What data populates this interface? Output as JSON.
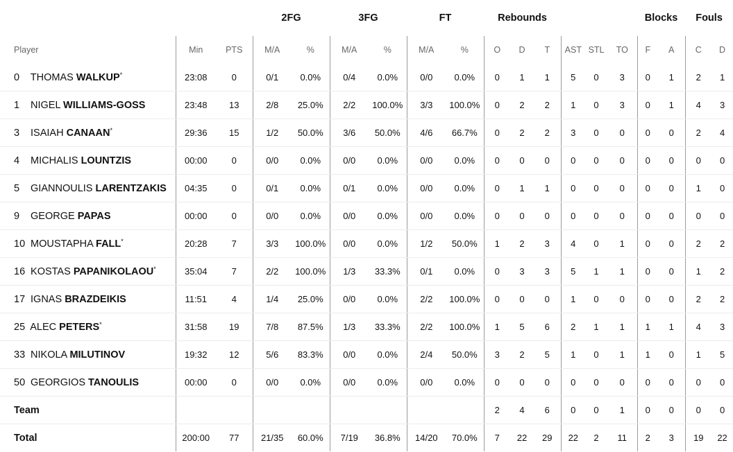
{
  "groups": {
    "fg2": "2FG",
    "fg3": "3FG",
    "ft": "FT",
    "rebounds": "Rebounds",
    "blocks": "Blocks",
    "fouls": "Fouls"
  },
  "columns": [
    "Player",
    "Min",
    "PTS",
    "M/A",
    "%",
    "M/A",
    "%",
    "M/A",
    "%",
    "O",
    "D",
    "T",
    "AST",
    "STL",
    "TO",
    "F",
    "A",
    "C",
    "D"
  ],
  "players": [
    {
      "no": "0",
      "first": "THOMAS",
      "last": "WALKUP",
      "starter": "*",
      "stats": [
        "23:08",
        "0",
        "0/1",
        "0.0%",
        "0/4",
        "0.0%",
        "0/0",
        "0.0%",
        "0",
        "1",
        "1",
        "5",
        "0",
        "3",
        "0",
        "1",
        "2",
        "1"
      ]
    },
    {
      "no": "1",
      "first": "NIGEL",
      "last": "WILLIAMS-GOSS",
      "starter": "",
      "stats": [
        "23:48",
        "13",
        "2/8",
        "25.0%",
        "2/2",
        "100.0%",
        "3/3",
        "100.0%",
        "0",
        "2",
        "2",
        "1",
        "0",
        "3",
        "0",
        "1",
        "4",
        "3"
      ]
    },
    {
      "no": "3",
      "first": "ISAIAH",
      "last": "CANAAN",
      "starter": "*",
      "stats": [
        "29:36",
        "15",
        "1/2",
        "50.0%",
        "3/6",
        "50.0%",
        "4/6",
        "66.7%",
        "0",
        "2",
        "2",
        "3",
        "0",
        "0",
        "0",
        "0",
        "2",
        "4"
      ]
    },
    {
      "no": "4",
      "first": "MICHALIS",
      "last": "LOUNTZIS",
      "starter": "",
      "stats": [
        "00:00",
        "0",
        "0/0",
        "0.0%",
        "0/0",
        "0.0%",
        "0/0",
        "0.0%",
        "0",
        "0",
        "0",
        "0",
        "0",
        "0",
        "0",
        "0",
        "0",
        "0"
      ]
    },
    {
      "no": "5",
      "first": "GIANNOULIS",
      "last": "LARENTZAKIS",
      "starter": "",
      "stats": [
        "04:35",
        "0",
        "0/1",
        "0.0%",
        "0/1",
        "0.0%",
        "0/0",
        "0.0%",
        "0",
        "1",
        "1",
        "0",
        "0",
        "0",
        "0",
        "0",
        "1",
        "0"
      ]
    },
    {
      "no": "9",
      "first": "GEORGE",
      "last": "PAPAS",
      "starter": "",
      "stats": [
        "00:00",
        "0",
        "0/0",
        "0.0%",
        "0/0",
        "0.0%",
        "0/0",
        "0.0%",
        "0",
        "0",
        "0",
        "0",
        "0",
        "0",
        "0",
        "0",
        "0",
        "0"
      ]
    },
    {
      "no": "10",
      "first": "MOUSTAPHA",
      "last": "FALL",
      "starter": "*",
      "stats": [
        "20:28",
        "7",
        "3/3",
        "100.0%",
        "0/0",
        "0.0%",
        "1/2",
        "50.0%",
        "1",
        "2",
        "3",
        "4",
        "0",
        "1",
        "0",
        "0",
        "2",
        "2"
      ]
    },
    {
      "no": "16",
      "first": "KOSTAS",
      "last": "PAPANIKOLAOU",
      "starter": "*",
      "stats": [
        "35:04",
        "7",
        "2/2",
        "100.0%",
        "1/3",
        "33.3%",
        "0/1",
        "0.0%",
        "0",
        "3",
        "3",
        "5",
        "1",
        "1",
        "0",
        "0",
        "1",
        "2"
      ]
    },
    {
      "no": "17",
      "first": "IGNAS",
      "last": "BRAZDEIKIS",
      "starter": "",
      "stats": [
        "11:51",
        "4",
        "1/4",
        "25.0%",
        "0/0",
        "0.0%",
        "2/2",
        "100.0%",
        "0",
        "0",
        "0",
        "1",
        "0",
        "0",
        "0",
        "0",
        "2",
        "2"
      ]
    },
    {
      "no": "25",
      "first": "ALEC",
      "last": "PETERS",
      "starter": "*",
      "stats": [
        "31:58",
        "19",
        "7/8",
        "87.5%",
        "1/3",
        "33.3%",
        "2/2",
        "100.0%",
        "1",
        "5",
        "6",
        "2",
        "1",
        "1",
        "1",
        "1",
        "4",
        "3"
      ]
    },
    {
      "no": "33",
      "first": "NIKOLA",
      "last": "MILUTINOV",
      "starter": "",
      "stats": [
        "19:32",
        "12",
        "5/6",
        "83.3%",
        "0/0",
        "0.0%",
        "2/4",
        "50.0%",
        "3",
        "2",
        "5",
        "1",
        "0",
        "1",
        "1",
        "0",
        "1",
        "5"
      ]
    },
    {
      "no": "50",
      "first": "GEORGIOS",
      "last": "TANOULIS",
      "starter": "",
      "stats": [
        "00:00",
        "0",
        "0/0",
        "0.0%",
        "0/0",
        "0.0%",
        "0/0",
        "0.0%",
        "0",
        "0",
        "0",
        "0",
        "0",
        "0",
        "0",
        "0",
        "0",
        "0"
      ]
    }
  ],
  "team": {
    "label": "Team",
    "stats": [
      "",
      "",
      "",
      "",
      "",
      "",
      "",
      "",
      "2",
      "4",
      "6",
      "0",
      "0",
      "1",
      "0",
      "0",
      "0",
      "0"
    ]
  },
  "total": {
    "label": "Total",
    "stats": [
      "200:00",
      "77",
      "21/35",
      "60.0%",
      "7/19",
      "36.8%",
      "14/20",
      "70.0%",
      "7",
      "22",
      "29",
      "22",
      "2",
      "11",
      "2",
      "3",
      "19",
      "22"
    ]
  }
}
